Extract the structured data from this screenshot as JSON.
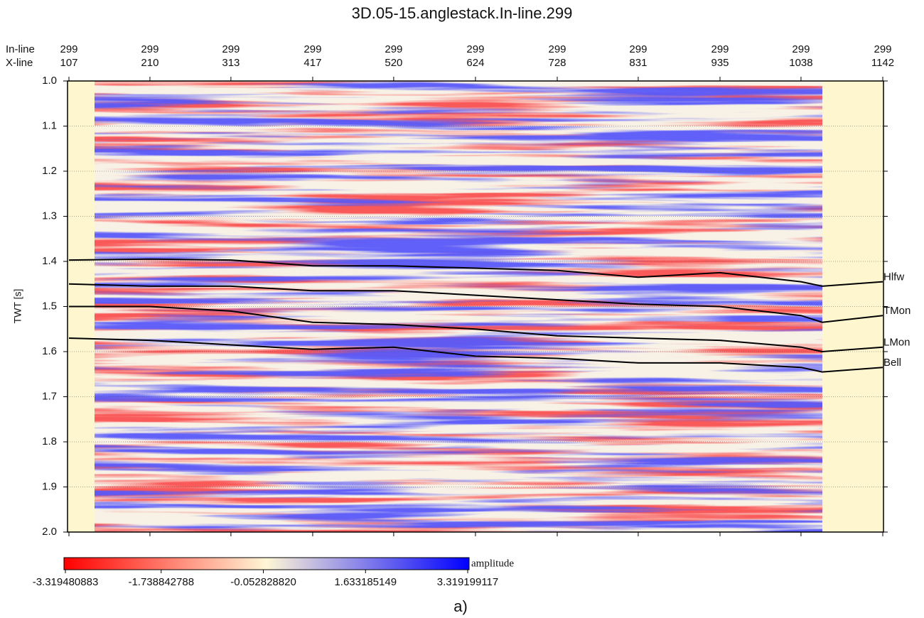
{
  "chart_data": {
    "type": "seismic",
    "title": "3D.05-15.anglestack.In-line.299",
    "ylabel": "TWT [s]",
    "top_axis_labels": [
      "In-line",
      "X-line"
    ],
    "inline": [
      299,
      299,
      299,
      299,
      299,
      299,
      299,
      299,
      299,
      299,
      299
    ],
    "xticks": [
      107,
      210,
      313,
      417,
      520,
      624,
      728,
      831,
      935,
      1038,
      1142
    ],
    "xlim": [
      107,
      1142
    ],
    "ylim": [
      1.0,
      2.0
    ],
    "yticks": [
      {
        "value": 1.0,
        "label": "1.0"
      },
      1.1,
      1.2,
      1.3,
      1.4,
      1.5,
      1.6,
      1.7,
      1.8,
      1.9,
      {
        "value": 2.0,
        "label": "2.0"
      }
    ],
    "grid": true,
    "x": [
      107,
      210,
      313,
      417,
      520,
      624,
      728,
      831,
      935,
      1038,
      1065,
      1142
    ],
    "series": [
      {
        "name": "Hlfw",
        "color": "#000000",
        "values": [
          1.397,
          1.395,
          1.397,
          1.41,
          1.41,
          1.415,
          1.42,
          1.435,
          1.425,
          1.445,
          1.455,
          1.445
        ]
      },
      {
        "name": "TMon",
        "color": "#000000",
        "values": [
          1.45,
          1.455,
          1.455,
          1.465,
          1.465,
          1.475,
          1.485,
          1.495,
          1.5,
          1.52,
          1.535,
          1.52
        ]
      },
      {
        "name": "LMon",
        "color": "#000000",
        "values": [
          1.5,
          1.5,
          1.51,
          1.535,
          1.54,
          1.55,
          1.565,
          1.57,
          1.575,
          1.59,
          1.6,
          1.59
        ]
      },
      {
        "name": "Bell",
        "color": "#000000",
        "values": [
          1.57,
          1.575,
          1.585,
          1.595,
          1.59,
          1.61,
          1.615,
          1.625,
          1.625,
          1.635,
          1.645,
          1.635
        ]
      }
    ],
    "colorbar": {
      "label": "amplitude",
      "ticks": [
        -3.319480883,
        -1.738842788,
        {
          "value": -0.05282882,
          "label": "-0.052828820"
        },
        1.633185149,
        3.319199117
      ],
      "colors": [
        "#ff0000",
        "#fff6d6",
        "#0000ff"
      ]
    },
    "caption": "a)"
  }
}
